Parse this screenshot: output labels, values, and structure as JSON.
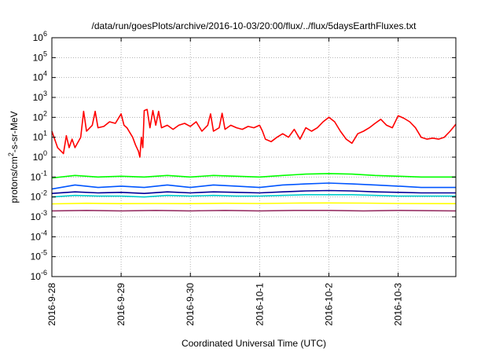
{
  "chart_data": {
    "type": "line",
    "title": "/data/run/goesPlots/archive/2016-10-03/20:00/flux/../flux/5daysEarthFluxes.txt",
    "xlabel": "Coordinated Universal Time (UTC)",
    "ylabel": "protons/cm²-s-sr-MeV",
    "yscale": "log",
    "ylim": [
      1e-06,
      1000000.0
    ],
    "xlim": [
      "2016-09-28 00:00",
      "2016-10-03 20:00"
    ],
    "x_ticks": [
      "2016-9-28",
      "2016-9-29",
      "2016-9-30",
      "2016-10-1",
      "2016-10-2",
      "2016-10-3"
    ],
    "y_ticks": [
      {
        "base": "10",
        "exp": "-6"
      },
      {
        "base": "10",
        "exp": "-5"
      },
      {
        "base": "10",
        "exp": "-4"
      },
      {
        "base": "10",
        "exp": "-3"
      },
      {
        "base": "10",
        "exp": "-2"
      },
      {
        "base": "10",
        "exp": "-1"
      },
      {
        "base": "10",
        "exp": "0"
      },
      {
        "base": "10",
        "exp": "1"
      },
      {
        "base": "10",
        "exp": "2"
      },
      {
        "base": "10",
        "exp": "3"
      },
      {
        "base": "10",
        "exp": "4"
      },
      {
        "base": "10",
        "exp": "5"
      },
      {
        "base": "10",
        "exp": "6"
      }
    ],
    "grid": true,
    "series": [
      {
        "color": "#ff0000",
        "values": [
          {
            "x": "2016-09-28 00:00",
            "y": 20
          },
          {
            "x": "2016-09-28 02:00",
            "y": 3
          },
          {
            "x": "2016-09-28 04:00",
            "y": 1.5
          },
          {
            "x": "2016-09-28 05:00",
            "y": 12
          },
          {
            "x": "2016-09-28 06:00",
            "y": 3
          },
          {
            "x": "2016-09-28 07:00",
            "y": 8
          },
          {
            "x": "2016-09-28 08:00",
            "y": 3
          },
          {
            "x": "2016-09-28 10:00",
            "y": 10
          },
          {
            "x": "2016-09-28 11:00",
            "y": 200
          },
          {
            "x": "2016-09-28 12:00",
            "y": 20
          },
          {
            "x": "2016-09-28 14:00",
            "y": 40
          },
          {
            "x": "2016-09-28 15:00",
            "y": 200
          },
          {
            "x": "2016-09-28 16:00",
            "y": 30
          },
          {
            "x": "2016-09-28 18:00",
            "y": 35
          },
          {
            "x": "2016-09-28 20:00",
            "y": 60
          },
          {
            "x": "2016-09-28 22:00",
            "y": 50
          },
          {
            "x": "2016-09-29 00:00",
            "y": 150
          },
          {
            "x": "2016-09-29 01:00",
            "y": 40
          },
          {
            "x": "2016-09-29 02:00",
            "y": 30
          },
          {
            "x": "2016-09-29 04:00",
            "y": 10
          },
          {
            "x": "2016-09-29 05:00",
            "y": 4
          },
          {
            "x": "2016-09-29 06:00",
            "y": 2
          },
          {
            "x": "2016-09-29 06:30",
            "y": 1
          },
          {
            "x": "2016-09-29 07:00",
            "y": 10
          },
          {
            "x": "2016-09-29 07:30",
            "y": 3
          },
          {
            "x": "2016-09-29 08:00",
            "y": 220
          },
          {
            "x": "2016-09-29 09:00",
            "y": 250
          },
          {
            "x": "2016-09-29 10:00",
            "y": 30
          },
          {
            "x": "2016-09-29 11:00",
            "y": 220
          },
          {
            "x": "2016-09-29 12:00",
            "y": 40
          },
          {
            "x": "2016-09-29 13:00",
            "y": 200
          },
          {
            "x": "2016-09-29 14:00",
            "y": 30
          },
          {
            "x": "2016-09-29 16:00",
            "y": 40
          },
          {
            "x": "2016-09-29 18:00",
            "y": 25
          },
          {
            "x": "2016-09-29 20:00",
            "y": 40
          },
          {
            "x": "2016-09-29 22:00",
            "y": 50
          },
          {
            "x": "2016-09-30 00:00",
            "y": 35
          },
          {
            "x": "2016-09-30 02:00",
            "y": 60
          },
          {
            "x": "2016-09-30 04:00",
            "y": 20
          },
          {
            "x": "2016-09-30 06:00",
            "y": 40
          },
          {
            "x": "2016-09-30 07:00",
            "y": 150
          },
          {
            "x": "2016-09-30 08:00",
            "y": 20
          },
          {
            "x": "2016-09-30 10:00",
            "y": 30
          },
          {
            "x": "2016-09-30 11:00",
            "y": 160
          },
          {
            "x": "2016-09-30 12:00",
            "y": 25
          },
          {
            "x": "2016-09-30 14:00",
            "y": 40
          },
          {
            "x": "2016-09-30 16:00",
            "y": 30
          },
          {
            "x": "2016-09-30 18:00",
            "y": 25
          },
          {
            "x": "2016-09-30 20:00",
            "y": 35
          },
          {
            "x": "2016-09-30 22:00",
            "y": 30
          },
          {
            "x": "2016-10-01 00:00",
            "y": 40
          },
          {
            "x": "2016-10-01 01:00",
            "y": 20
          },
          {
            "x": "2016-10-01 02:00",
            "y": 8
          },
          {
            "x": "2016-10-01 04:00",
            "y": 6
          },
          {
            "x": "2016-10-01 06:00",
            "y": 10
          },
          {
            "x": "2016-10-01 08:00",
            "y": 15
          },
          {
            "x": "2016-10-01 10:00",
            "y": 10
          },
          {
            "x": "2016-10-01 12:00",
            "y": 25
          },
          {
            "x": "2016-10-01 14:00",
            "y": 8
          },
          {
            "x": "2016-10-01 16:00",
            "y": 30
          },
          {
            "x": "2016-10-01 18:00",
            "y": 20
          },
          {
            "x": "2016-10-01 20:00",
            "y": 30
          },
          {
            "x": "2016-10-01 22:00",
            "y": 60
          },
          {
            "x": "2016-10-02 00:00",
            "y": 100
          },
          {
            "x": "2016-10-02 02:00",
            "y": 60
          },
          {
            "x": "2016-10-02 04:00",
            "y": 20
          },
          {
            "x": "2016-10-02 06:00",
            "y": 8
          },
          {
            "x": "2016-10-02 08:00",
            "y": 5
          },
          {
            "x": "2016-10-02 10:00",
            "y": 15
          },
          {
            "x": "2016-10-02 12:00",
            "y": 20
          },
          {
            "x": "2016-10-02 14:00",
            "y": 30
          },
          {
            "x": "2016-10-02 16:00",
            "y": 50
          },
          {
            "x": "2016-10-02 18:00",
            "y": 80
          },
          {
            "x": "2016-10-02 20:00",
            "y": 40
          },
          {
            "x": "2016-10-02 22:00",
            "y": 30
          },
          {
            "x": "2016-10-03 00:00",
            "y": 120
          },
          {
            "x": "2016-10-03 02:00",
            "y": 90
          },
          {
            "x": "2016-10-03 04:00",
            "y": 60
          },
          {
            "x": "2016-10-03 06:00",
            "y": 30
          },
          {
            "x": "2016-10-03 08:00",
            "y": 10
          },
          {
            "x": "2016-10-03 10:00",
            "y": 8
          },
          {
            "x": "2016-10-03 12:00",
            "y": 9
          },
          {
            "x": "2016-10-03 14:00",
            "y": 8
          },
          {
            "x": "2016-10-03 16:00",
            "y": 10
          },
          {
            "x": "2016-10-03 18:00",
            "y": 20
          },
          {
            "x": "2016-10-03 20:00",
            "y": 45
          }
        ]
      },
      {
        "color": "#00ff00",
        "values": [
          {
            "x": "2016-09-28 00:00",
            "y": 0.09
          },
          {
            "x": "2016-09-28 08:00",
            "y": 0.12
          },
          {
            "x": "2016-09-28 16:00",
            "y": 0.1
          },
          {
            "x": "2016-09-29 00:00",
            "y": 0.11
          },
          {
            "x": "2016-09-29 08:00",
            "y": 0.1
          },
          {
            "x": "2016-09-29 16:00",
            "y": 0.12
          },
          {
            "x": "2016-09-30 00:00",
            "y": 0.1
          },
          {
            "x": "2016-09-30 08:00",
            "y": 0.12
          },
          {
            "x": "2016-09-30 16:00",
            "y": 0.11
          },
          {
            "x": "2016-10-01 00:00",
            "y": 0.1
          },
          {
            "x": "2016-10-01 08:00",
            "y": 0.12
          },
          {
            "x": "2016-10-01 16:00",
            "y": 0.14
          },
          {
            "x": "2016-10-02 00:00",
            "y": 0.15
          },
          {
            "x": "2016-10-02 08:00",
            "y": 0.14
          },
          {
            "x": "2016-10-02 16:00",
            "y": 0.12
          },
          {
            "x": "2016-10-03 00:00",
            "y": 0.11
          },
          {
            "x": "2016-10-03 08:00",
            "y": 0.1
          },
          {
            "x": "2016-10-03 20:00",
            "y": 0.1
          }
        ]
      },
      {
        "color": "#0055ff",
        "values": [
          {
            "x": "2016-09-28 00:00",
            "y": 0.025
          },
          {
            "x": "2016-09-28 08:00",
            "y": 0.04
          },
          {
            "x": "2016-09-28 16:00",
            "y": 0.03
          },
          {
            "x": "2016-09-29 00:00",
            "y": 0.035
          },
          {
            "x": "2016-09-29 08:00",
            "y": 0.03
          },
          {
            "x": "2016-09-29 16:00",
            "y": 0.04
          },
          {
            "x": "2016-09-30 00:00",
            "y": 0.03
          },
          {
            "x": "2016-09-30 08:00",
            "y": 0.04
          },
          {
            "x": "2016-09-30 16:00",
            "y": 0.035
          },
          {
            "x": "2016-10-01 00:00",
            "y": 0.03
          },
          {
            "x": "2016-10-01 08:00",
            "y": 0.04
          },
          {
            "x": "2016-10-01 16:00",
            "y": 0.045
          },
          {
            "x": "2016-10-02 00:00",
            "y": 0.05
          },
          {
            "x": "2016-10-02 08:00",
            "y": 0.045
          },
          {
            "x": "2016-10-02 16:00",
            "y": 0.04
          },
          {
            "x": "2016-10-03 00:00",
            "y": 0.035
          },
          {
            "x": "2016-10-03 08:00",
            "y": 0.03
          },
          {
            "x": "2016-10-03 20:00",
            "y": 0.03
          }
        ]
      },
      {
        "color": "#000099",
        "values": [
          {
            "x": "2016-09-28 00:00",
            "y": 0.015
          },
          {
            "x": "2016-09-28 08:00",
            "y": 0.018
          },
          {
            "x": "2016-09-28 16:00",
            "y": 0.016
          },
          {
            "x": "2016-09-29 00:00",
            "y": 0.017
          },
          {
            "x": "2016-09-29 08:00",
            "y": 0.015
          },
          {
            "x": "2016-09-29 16:00",
            "y": 0.018
          },
          {
            "x": "2016-09-30 00:00",
            "y": 0.016
          },
          {
            "x": "2016-09-30 08:00",
            "y": 0.018
          },
          {
            "x": "2016-09-30 16:00",
            "y": 0.017
          },
          {
            "x": "2016-10-01 00:00",
            "y": 0.016
          },
          {
            "x": "2016-10-01 08:00",
            "y": 0.018
          },
          {
            "x": "2016-10-01 16:00",
            "y": 0.02
          },
          {
            "x": "2016-10-02 00:00",
            "y": 0.021
          },
          {
            "x": "2016-10-02 08:00",
            "y": 0.02
          },
          {
            "x": "2016-10-02 16:00",
            "y": 0.018
          },
          {
            "x": "2016-10-03 00:00",
            "y": 0.017
          },
          {
            "x": "2016-10-03 08:00",
            "y": 0.016
          },
          {
            "x": "2016-10-03 20:00",
            "y": 0.016
          }
        ]
      },
      {
        "color": "#00cccc",
        "values": [
          {
            "x": "2016-09-28 00:00",
            "y": 0.01
          },
          {
            "x": "2016-09-28 08:00",
            "y": 0.012
          },
          {
            "x": "2016-09-28 16:00",
            "y": 0.011
          },
          {
            "x": "2016-09-29 00:00",
            "y": 0.011
          },
          {
            "x": "2016-09-29 08:00",
            "y": 0.01
          },
          {
            "x": "2016-09-29 16:00",
            "y": 0.012
          },
          {
            "x": "2016-09-30 00:00",
            "y": 0.011
          },
          {
            "x": "2016-09-30 08:00",
            "y": 0.012
          },
          {
            "x": "2016-09-30 16:00",
            "y": 0.011
          },
          {
            "x": "2016-10-01 00:00",
            "y": 0.011
          },
          {
            "x": "2016-10-01 08:00",
            "y": 0.012
          },
          {
            "x": "2016-10-01 16:00",
            "y": 0.013
          },
          {
            "x": "2016-10-02 00:00",
            "y": 0.013
          },
          {
            "x": "2016-10-02 08:00",
            "y": 0.013
          },
          {
            "x": "2016-10-02 16:00",
            "y": 0.012
          },
          {
            "x": "2016-10-03 00:00",
            "y": 0.011
          },
          {
            "x": "2016-10-03 08:00",
            "y": 0.011
          },
          {
            "x": "2016-10-03 20:00",
            "y": 0.011
          }
        ]
      },
      {
        "color": "#ffff00",
        "values": [
          {
            "x": "2016-09-28 00:00",
            "y": 0.0045
          },
          {
            "x": "2016-09-28 12:00",
            "y": 0.0048
          },
          {
            "x": "2016-09-29 00:00",
            "y": 0.0046
          },
          {
            "x": "2016-09-29 12:00",
            "y": 0.0047
          },
          {
            "x": "2016-09-30 00:00",
            "y": 0.0046
          },
          {
            "x": "2016-09-30 12:00",
            "y": 0.0048
          },
          {
            "x": "2016-10-01 00:00",
            "y": 0.0047
          },
          {
            "x": "2016-10-01 12:00",
            "y": 0.0049
          },
          {
            "x": "2016-10-02 00:00",
            "y": 0.005
          },
          {
            "x": "2016-10-02 12:00",
            "y": 0.0049
          },
          {
            "x": "2016-10-03 00:00",
            "y": 0.0047
          },
          {
            "x": "2016-10-03 20:00",
            "y": 0.0046
          }
        ]
      },
      {
        "color": "#993366",
        "values": [
          {
            "x": "2016-09-28 00:00",
            "y": 0.002
          },
          {
            "x": "2016-09-28 12:00",
            "y": 0.0021
          },
          {
            "x": "2016-09-29 00:00",
            "y": 0.002
          },
          {
            "x": "2016-09-29 12:00",
            "y": 0.0021
          },
          {
            "x": "2016-09-30 00:00",
            "y": 0.002
          },
          {
            "x": "2016-09-30 12:00",
            "y": 0.0021
          },
          {
            "x": "2016-10-01 00:00",
            "y": 0.002
          },
          {
            "x": "2016-10-01 12:00",
            "y": 0.0021
          },
          {
            "x": "2016-10-02 00:00",
            "y": 0.0021
          },
          {
            "x": "2016-10-02 12:00",
            "y": 0.002
          },
          {
            "x": "2016-10-03 00:00",
            "y": 0.0021
          },
          {
            "x": "2016-10-03 20:00",
            "y": 0.002
          }
        ]
      }
    ]
  }
}
